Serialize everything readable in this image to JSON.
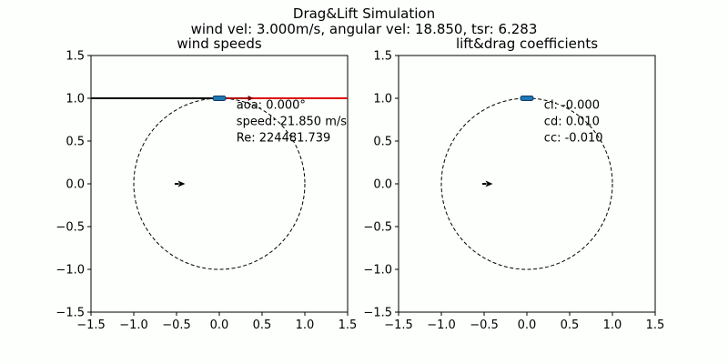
{
  "figure": {
    "title": "Drag&Lift Simulation",
    "subtitle": "wind vel: 3.000m/s, angular vel: 18.850, tsr: 6.283"
  },
  "chart_data": [
    {
      "type": "scatter",
      "title": "wind speeds",
      "xlim": [
        -1.5,
        1.5
      ],
      "ylim": [
        -1.5,
        1.5
      ],
      "xticks": [
        "−1.5",
        "−1.0",
        "−0.5",
        "0.0",
        "0.5",
        "1.0",
        "1.5"
      ],
      "yticks": [
        "1.5",
        "1.0",
        "0.5",
        "0.0",
        "−0.5",
        "−1.0",
        "−1.5"
      ],
      "grid": false,
      "circle": {
        "center": [
          0,
          0
        ],
        "radius": 1.0,
        "style": "dashed"
      },
      "blade": {
        "x": 0.0,
        "y": 1.0
      },
      "wind_arrow": {
        "x": -0.5,
        "y": 0.0,
        "dx": 0.25,
        "dy": 0.0
      },
      "lines": [
        {
          "x": [
            -1.5,
            0.0
          ],
          "y": [
            1.0,
            1.0
          ],
          "color": "#000000"
        },
        {
          "x": [
            0.0,
            1.5
          ],
          "y": [
            1.0,
            1.0
          ],
          "color": "#e00000"
        }
      ],
      "small_arrow": {
        "x": 0.05,
        "y": 1.0,
        "dx": 0.35,
        "dy": 0.0
      },
      "annotations": [
        "aoa: 0.000°",
        "speed: 21.850 m/s",
        "Re: 224481.739"
      ],
      "annotation_anchor": {
        "x": 0.2,
        "y": 0.88
      }
    },
    {
      "type": "scatter",
      "title": "lift&drag coefficients",
      "xlim": [
        -1.5,
        1.5
      ],
      "ylim": [
        -1.5,
        1.5
      ],
      "xticks": [
        "−1.5",
        "−1.0",
        "−0.5",
        "0.0",
        "0.5",
        "1.0",
        "1.5"
      ],
      "yticks": [
        "1.5",
        "1.0",
        "0.5",
        "0.0",
        "−0.5",
        "−1.0",
        "−1.5"
      ],
      "grid": false,
      "circle": {
        "center": [
          0,
          0
        ],
        "radius": 1.0,
        "style": "dashed"
      },
      "blade": {
        "x": 0.0,
        "y": 1.0
      },
      "wind_arrow": {
        "x": -0.5,
        "y": 0.0,
        "dx": 0.25,
        "dy": 0.0
      },
      "lines": [],
      "small_arrow": null,
      "annotations": [
        "cl: -0.000",
        "cd: 0.010",
        "cc: -0.010"
      ],
      "annotation_anchor": {
        "x": 0.2,
        "y": 0.88
      }
    }
  ],
  "colors": {
    "background": "#fcfffc",
    "blade": "#1f77b4",
    "red_line": "#e00000"
  }
}
